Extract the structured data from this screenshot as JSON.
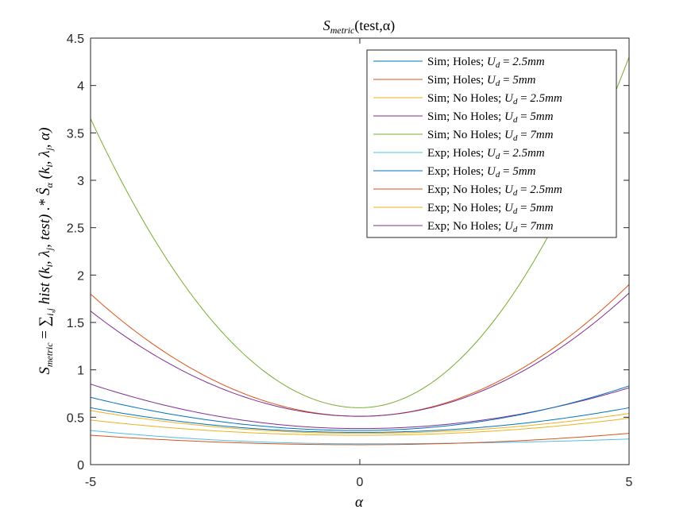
{
  "chart_data": {
    "type": "line",
    "title": "S_metric(test,α)",
    "title_parts": {
      "base": "S",
      "sub": "metric",
      "rest": "(test,α)"
    },
    "xlabel": "α",
    "ylabel": "S_metric = ∑_i,j hist(k_i, λ_j, test) .* Ŝ_α(k_i, λ_j, α)",
    "ylabel_parts": {
      "lhs": "S",
      "lhs_sub": "metric",
      "eq": " = ∑",
      "sum_sub": "i,j",
      "hist": " hist (k",
      "i1": "i",
      "l1": ", λ",
      "j1": "j",
      "mid": ", test)  .*  Ŝ",
      "alpha_sub": "α",
      "k2": " (k",
      "i2": "i",
      "l2": ", λ",
      "j2": "j",
      "end": ", α)"
    },
    "xlim": [
      -5,
      5
    ],
    "ylim": [
      0,
      4.5
    ],
    "x_ticks": [
      -5,
      0,
      5
    ],
    "y_ticks": [
      0,
      0.5,
      1,
      1.5,
      2,
      2.5,
      3,
      3.5,
      4,
      4.5
    ],
    "x_tick_labels": [
      "-5",
      "0",
      "5"
    ],
    "y_tick_labels": [
      "0",
      "0.5",
      "1",
      "1.5",
      "2",
      "2.5",
      "3",
      "3.5",
      "4",
      "4.5"
    ],
    "legend_position": "top-right",
    "series": [
      {
        "name": "Sim; Holes; U_d = 2.5mm",
        "label": "Sim; Holes; ",
        "ud": "2.5mm",
        "color": "#0072BD",
        "y_left": 0.6,
        "y_min": 0.34,
        "y_right": 0.6
      },
      {
        "name": "Sim; Holes; U_d = 5mm",
        "label": "Sim; Holes; ",
        "ud": "5mm",
        "color": "#D95319",
        "y_left": 1.8,
        "y_min": 0.51,
        "y_right": 1.9
      },
      {
        "name": "Sim; No Holes; U_d = 2.5mm",
        "label": "Sim; No Holes; ",
        "ud": "2.5mm",
        "color": "#EDB120",
        "y_left": 0.57,
        "y_min": 0.33,
        "y_right": 0.54
      },
      {
        "name": "Sim; No Holes; U_d = 5mm",
        "label": "Sim; No Holes; ",
        "ud": "5mm",
        "color": "#7E2F8E",
        "y_left": 0.85,
        "y_min": 0.38,
        "y_right": 0.81
      },
      {
        "name": "Sim; No Holes; U_d = 7mm",
        "label": "Sim; No Holes; ",
        "ud": "7mm",
        "color": "#77AC30",
        "y_left": 3.65,
        "y_min": 0.6,
        "y_right": 4.3
      },
      {
        "name": "Exp; Holes; U_d = 2.5mm",
        "label": "Exp; Holes; ",
        "ud": "2.5mm",
        "color": "#4DBEEE",
        "y_left": 0.36,
        "y_min": 0.22,
        "y_right": 0.27
      },
      {
        "name": "Exp; Holes; U_d = 5mm",
        "label": "Exp; Holes; ",
        "ud": "5mm",
        "color": "#0072BD",
        "y_left": 0.71,
        "y_min": 0.36,
        "y_right": 0.83
      },
      {
        "name": "Exp; No Holes; U_d = 2.5mm",
        "label": "Exp; No Holes; ",
        "ud": "2.5mm",
        "color": "#D95319",
        "y_left": 0.31,
        "y_min": 0.21,
        "y_right": 0.33
      },
      {
        "name": "Exp; No Holes; U_d = 5mm",
        "label": "Exp; No Holes; ",
        "ud": "5mm",
        "color": "#EDB120",
        "y_left": 0.47,
        "y_min": 0.31,
        "y_right": 0.49
      },
      {
        "name": "Exp; No Holes; U_d = 7mm",
        "label": "Exp; No Holes; ",
        "ud": "7mm",
        "color": "#7E2F8E",
        "y_left": 1.62,
        "y_min": 0.51,
        "y_right": 1.81
      }
    ]
  },
  "colors": {
    "axis": "#262626",
    "background": "#ffffff"
  }
}
